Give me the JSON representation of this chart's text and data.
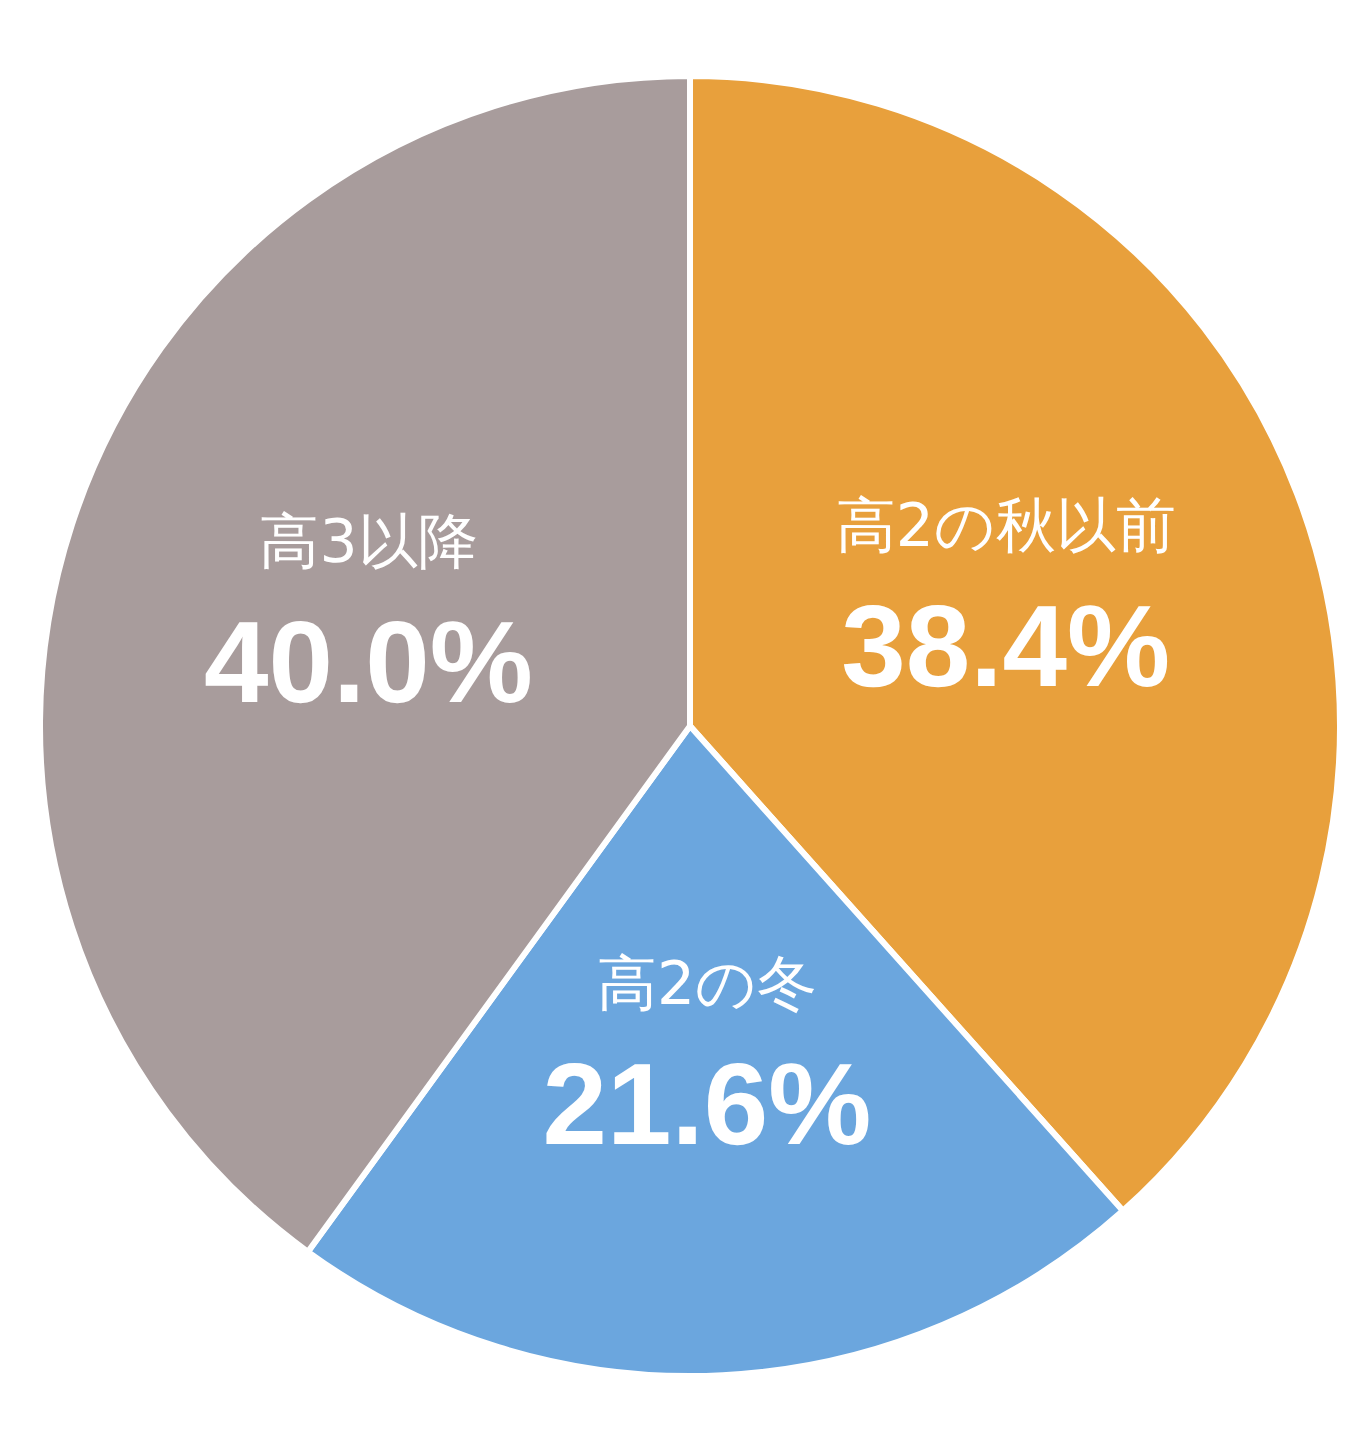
{
  "chart_data": {
    "type": "pie",
    "categories": [
      "高2の秋以前",
      "高2の冬",
      "高3以降"
    ],
    "values": [
      38.4,
      21.6,
      40.0
    ],
    "value_labels": [
      "38.4%",
      "21.6%",
      "40.0%"
    ],
    "colors": [
      "#e8a03c",
      "#6ba6de",
      "#a89c9c"
    ]
  }
}
